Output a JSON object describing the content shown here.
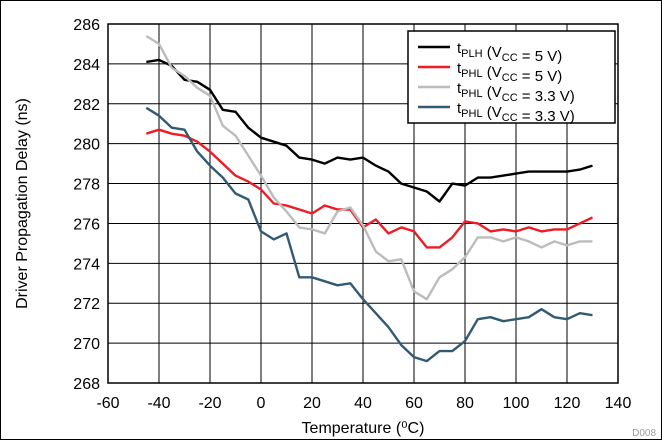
{
  "chart_data": {
    "type": "line",
    "title": "",
    "xlabel": "Temperature (⁰C)",
    "ylabel": "Driver Propagation Delay (ns)",
    "footnote": "D008",
    "xlim": [
      -60,
      140
    ],
    "ylim": [
      268,
      286
    ],
    "xticks": [
      -60,
      -40,
      -20,
      0,
      20,
      40,
      60,
      80,
      100,
      120,
      140
    ],
    "yticks": [
      268,
      270,
      272,
      274,
      276,
      278,
      280,
      282,
      284,
      286
    ],
    "grid": true,
    "legend_position": "top-right",
    "series": [
      {
        "name": "tPLH (VCC = 5 V)",
        "label": {
          "main": "t",
          "sub": "PLH",
          "mid": " (V",
          "sub2": "CC",
          "tail": " = 5 V)"
        },
        "color": "#000000",
        "x": [
          -45,
          -40,
          -35,
          -30,
          -25,
          -20,
          -15,
          -10,
          -5,
          0,
          5,
          10,
          15,
          20,
          25,
          30,
          35,
          40,
          45,
          50,
          55,
          60,
          65,
          70,
          75,
          80,
          85,
          90,
          95,
          100,
          105,
          110,
          115,
          120,
          125,
          130
        ],
        "y": [
          284.1,
          284.2,
          283.9,
          283.2,
          283.1,
          282.7,
          281.7,
          281.6,
          280.8,
          280.3,
          280.1,
          279.9,
          279.3,
          279.2,
          279.0,
          279.3,
          279.2,
          279.3,
          278.9,
          278.6,
          278.0,
          277.8,
          277.6,
          277.1,
          278.0,
          277.9,
          278.3,
          278.3,
          278.4,
          278.5,
          278.6,
          278.6,
          278.6,
          278.6,
          278.7,
          278.9
        ]
      },
      {
        "name": "tPHL (VCC = 5 V)",
        "label": {
          "main": "t",
          "sub": "PHL",
          "mid": " (V",
          "sub2": "CC",
          "tail": " = 5 V)"
        },
        "color": "#ee1c25",
        "x": [
          -45,
          -40,
          -35,
          -30,
          -25,
          -20,
          -15,
          -10,
          -5,
          0,
          5,
          10,
          15,
          20,
          25,
          30,
          35,
          40,
          45,
          50,
          55,
          60,
          65,
          70,
          75,
          80,
          85,
          90,
          95,
          100,
          105,
          110,
          115,
          120,
          125,
          130
        ],
        "y": [
          280.5,
          280.7,
          280.5,
          280.4,
          280.1,
          279.6,
          279.0,
          278.4,
          278.1,
          277.7,
          277.0,
          276.9,
          276.7,
          276.5,
          276.9,
          276.7,
          276.7,
          275.8,
          276.2,
          275.5,
          275.8,
          275.6,
          274.8,
          274.8,
          275.3,
          276.1,
          276.0,
          275.6,
          275.7,
          275.6,
          275.8,
          275.6,
          275.7,
          275.7,
          276.0,
          276.3
        ]
      },
      {
        "name": "tPHL (VCC = 3.3 V)",
        "label": {
          "main": "t",
          "sub": "PHL",
          "mid": " (V",
          "sub2": "CC",
          "tail": " = 3.3 V)"
        },
        "color": "#bcbcbc",
        "x": [
          -45,
          -40,
          -35,
          -30,
          -25,
          -20,
          -15,
          -10,
          -5,
          0,
          5,
          10,
          15,
          20,
          25,
          30,
          35,
          40,
          45,
          50,
          55,
          60,
          65,
          70,
          75,
          80,
          85,
          90,
          95,
          100,
          105,
          110,
          115,
          120,
          125,
          130
        ],
        "y": [
          285.4,
          285.0,
          283.8,
          283.4,
          282.8,
          282.4,
          280.9,
          280.4,
          279.4,
          278.4,
          277.3,
          276.6,
          275.8,
          275.7,
          275.5,
          276.6,
          276.8,
          275.9,
          274.6,
          274.1,
          274.2,
          272.6,
          272.2,
          273.3,
          273.7,
          274.3,
          275.3,
          275.3,
          275.1,
          275.3,
          275.1,
          274.8,
          275.1,
          274.9,
          275.1,
          275.1
        ]
      },
      {
        "name": "tPHL (VCC = 3.3 V)",
        "label": {
          "main": "t",
          "sub": "PHL",
          "mid": " (V",
          "sub2": "CC",
          "tail": " = 3.3 V)"
        },
        "color": "#325a73",
        "x": [
          -45,
          -40,
          -35,
          -30,
          -25,
          -20,
          -15,
          -10,
          -5,
          0,
          5,
          10,
          15,
          20,
          25,
          30,
          35,
          40,
          45,
          50,
          55,
          60,
          65,
          70,
          75,
          80,
          85,
          90,
          95,
          100,
          105,
          110,
          115,
          120,
          125,
          130
        ],
        "y": [
          281.8,
          281.4,
          280.8,
          280.7,
          279.6,
          278.9,
          278.3,
          277.5,
          277.2,
          275.6,
          275.2,
          275.5,
          273.3,
          273.3,
          273.1,
          272.9,
          273.0,
          272.2,
          271.5,
          270.8,
          269.9,
          269.3,
          269.1,
          269.6,
          269.6,
          270.1,
          271.2,
          271.3,
          271.1,
          271.2,
          271.3,
          271.7,
          271.3,
          271.2,
          271.5,
          271.4
        ]
      }
    ]
  }
}
